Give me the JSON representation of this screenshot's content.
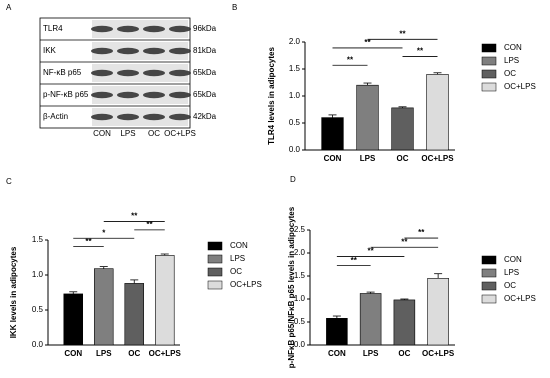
{
  "panel_labels": [
    "A",
    "B",
    "C",
    "D"
  ],
  "blot": {
    "rows": [
      "TLR4",
      "IKK",
      "NF-κB p65",
      "p-NF-κB p65",
      "β-Actin"
    ],
    "sizes": [
      "96kDa",
      "81kDa",
      "65kDa",
      "65kDa",
      "42kDa"
    ],
    "lanes": [
      "CON",
      "LPS",
      "OC",
      "OC+LPS"
    ]
  },
  "chart_data": [
    {
      "type": "bar",
      "y_label": "TLR4 levels in adipocytes",
      "categories": [
        "CON",
        "LPS",
        "OC",
        "OC+LPS"
      ],
      "values": [
        0.6,
        1.2,
        0.78,
        1.4
      ],
      "errors": [
        0.05,
        0.04,
        0.02,
        0.03
      ],
      "colors": [
        "#000000",
        "#7f7f7f",
        "#5f5f5f",
        "#dcdcdc"
      ],
      "ylim": [
        0,
        2.0
      ],
      "yticks": [
        {
          "value": 0,
          "label": "0.0"
        },
        {
          "value": 0.5,
          "label": "0.5"
        },
        {
          "value": 1,
          "label": "1.0"
        },
        {
          "value": 1.5,
          "label": "1.5"
        },
        {
          "value": 2,
          "label": "2.0"
        }
      ],
      "annotations": [
        {
          "label": "**",
          "from": 0,
          "to": 1
        },
        {
          "label": "**",
          "from": 2,
          "to": 3
        },
        {
          "label": "**",
          "from": 0,
          "to": 2
        },
        {
          "label": "**",
          "from": 1,
          "to": 3
        }
      ]
    },
    {
      "type": "bar",
      "y_label": "IKK levels in adipocytes",
      "categories": [
        "CON",
        "LPS",
        "OC",
        "OC+LPS"
      ],
      "values": [
        0.73,
        1.09,
        0.88,
        1.28
      ],
      "errors": [
        0.03,
        0.03,
        0.05,
        0.02
      ],
      "colors": [
        "#000000",
        "#7f7f7f",
        "#5f5f5f",
        "#dcdcdc"
      ],
      "ylim": [
        0,
        1.5
      ],
      "yticks": [
        {
          "value": 0,
          "label": "0.0"
        },
        {
          "value": 0.5,
          "label": "0.5"
        },
        {
          "value": 1,
          "label": "1.0"
        },
        {
          "value": 1.5,
          "label": "1.5"
        }
      ],
      "annotations": [
        {
          "label": "**",
          "from": 0,
          "to": 1
        },
        {
          "label": "*",
          "from": 0,
          "to": 2
        },
        {
          "label": "**",
          "from": 2,
          "to": 3
        },
        {
          "label": "**",
          "from": 1,
          "to": 3
        }
      ]
    },
    {
      "type": "bar",
      "y_label": "p-NFκB p65/NFκB p65 levels in adipocytes",
      "categories": [
        "CON",
        "LPS",
        "OC",
        "OC+LPS"
      ],
      "values": [
        0.58,
        1.12,
        0.98,
        1.45
      ],
      "errors": [
        0.05,
        0.03,
        0.02,
        0.1
      ],
      "colors": [
        "#000000",
        "#7f7f7f",
        "#5f5f5f",
        "#dcdcdc"
      ],
      "ylim": [
        0,
        2.5
      ],
      "yticks": [
        {
          "value": 0,
          "label": "0.0"
        },
        {
          "value": 0.5,
          "label": "0.5"
        },
        {
          "value": 1,
          "label": "1.0"
        },
        {
          "value": 1.5,
          "label": "1.5"
        },
        {
          "value": 2,
          "label": "2.0"
        },
        {
          "value": 2.5,
          "label": "2.5"
        }
      ],
      "annotations": [
        {
          "label": "**",
          "from": 0,
          "to": 1
        },
        {
          "label": "**",
          "from": 0,
          "to": 2
        },
        {
          "label": "**",
          "from": 1,
          "to": 3
        },
        {
          "label": "**",
          "from": 2,
          "to": 3
        }
      ]
    }
  ]
}
